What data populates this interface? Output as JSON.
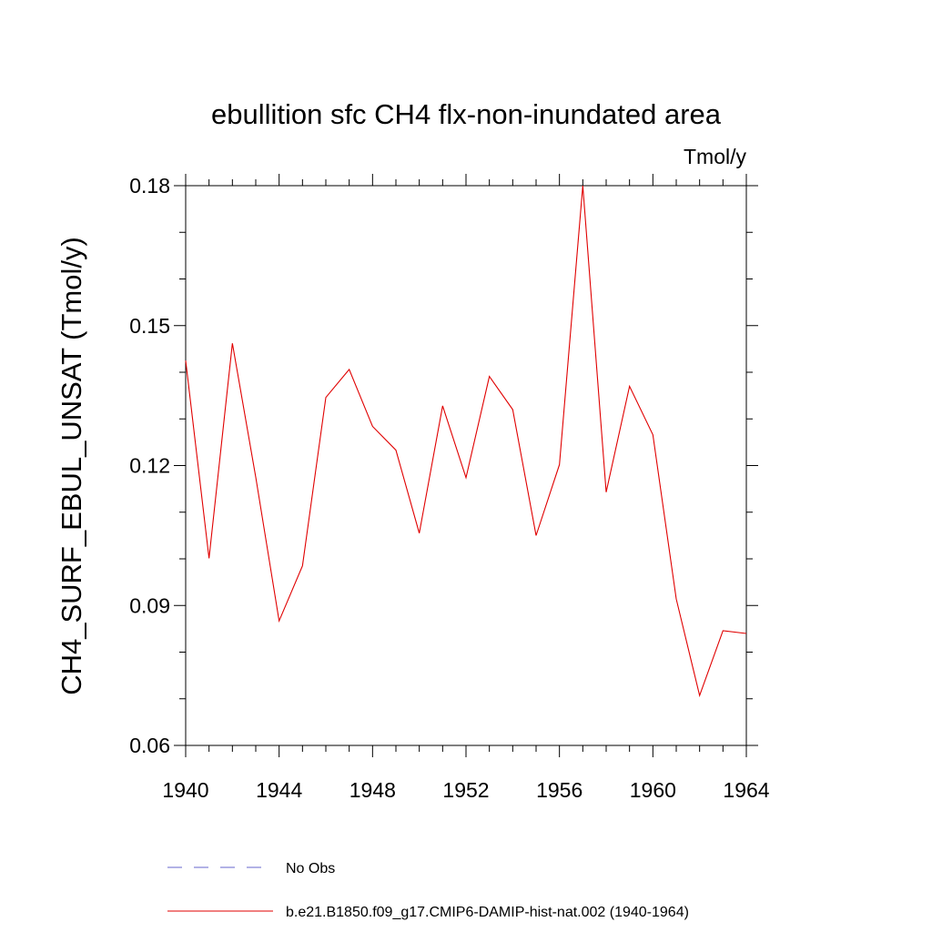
{
  "chart_data": {
    "type": "line",
    "title": "ebullition sfc CH4 flx-non-inundated area",
    "units_label": "Tmol/y",
    "xlabel": "",
    "ylabel": "CH4_SURF_EBUL_UNSAT  (Tmol/y)",
    "xlim": [
      1940,
      1964
    ],
    "ylim": [
      0.06,
      0.18
    ],
    "x_ticks": [
      1940,
      1944,
      1948,
      1952,
      1956,
      1960,
      1964
    ],
    "x_tick_labels": [
      "1940",
      "1944",
      "1948",
      "1952",
      "1956",
      "1960",
      "1964"
    ],
    "y_ticks": [
      0.06,
      0.09,
      0.12,
      0.15,
      0.18
    ],
    "y_tick_labels": [
      "0.06",
      "0.09",
      "0.12",
      "0.15",
      "0.18"
    ],
    "y_minor_step": 0.01,
    "x_minor_step": 1,
    "grid": false,
    "legend_position": "bottom",
    "legend": [
      {
        "label": "No Obs",
        "color": "#6666cc",
        "style": "dashed"
      },
      {
        "label": "b.e21.B1850.f09_g17.CMIP6-DAMIP-hist-nat.002 (1940-1964)",
        "color": "#e00000",
        "style": "solid"
      }
    ],
    "series": [
      {
        "name": "b.e21.B1850.f09_g17.CMIP6-DAMIP-hist-nat.002 (1940-1964)",
        "color": "#e00000",
        "x": [
          1940,
          1941,
          1942,
          1943,
          1944,
          1945,
          1946,
          1947,
          1948,
          1949,
          1950,
          1951,
          1952,
          1953,
          1954,
          1955,
          1956,
          1957,
          1958,
          1959,
          1960,
          1961,
          1962,
          1963,
          1964
        ],
        "values": [
          0.1425,
          0.1001,
          0.1462,
          0.1175,
          0.0867,
          0.0985,
          0.1346,
          0.1406,
          0.1284,
          0.1233,
          0.1055,
          0.1328,
          0.1174,
          0.1391,
          0.132,
          0.105,
          0.1202,
          0.18,
          0.1143,
          0.137,
          0.1266,
          0.0914,
          0.0707,
          0.0846,
          0.084
        ]
      }
    ]
  }
}
